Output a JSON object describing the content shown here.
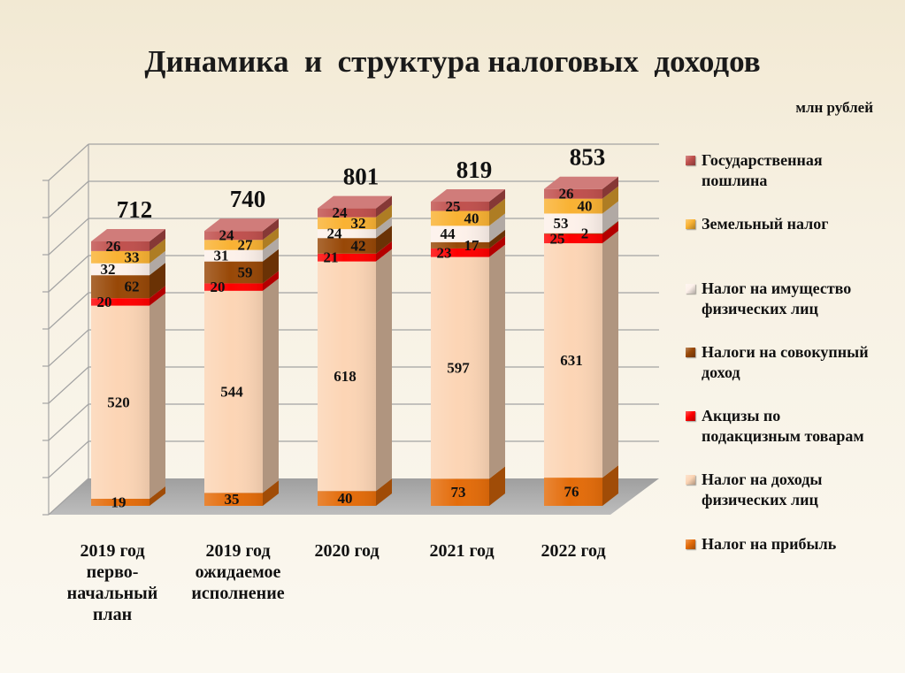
{
  "chart_data": {
    "type": "bar",
    "stacked": true,
    "style": "3d",
    "title": "Динамика  и  структура налоговых  доходов",
    "unit": "млн рублей",
    "categories": [
      "2019 год\nперво-\nначальный\nплан",
      "2019 год\nожидаемое\nисполнение",
      "2020 год",
      "2021 год",
      "2022 год"
    ],
    "series": [
      {
        "name": "Налог на прибыль",
        "values": [
          19,
          35,
          40,
          73,
          76
        ],
        "color": "#e46c0a"
      },
      {
        "name": "Налог на доходы физических лиц",
        "values": [
          520,
          544,
          618,
          597,
          631
        ],
        "color": "#fcd5b5"
      },
      {
        "name": "Акцизы по подакцизным товарам",
        "values": [
          20,
          20,
          21,
          23,
          25
        ],
        "color": "#ff0000"
      },
      {
        "name": "Налоги на совокупный доход",
        "values": [
          62,
          59,
          42,
          17,
          2
        ],
        "color": "#984807"
      },
      {
        "name": "Налог на имущество физических лиц",
        "values": [
          32,
          31,
          24,
          44,
          53
        ],
        "color": "#fdf1ea"
      },
      {
        "name": "Земельный налог",
        "values": [
          33,
          27,
          32,
          40,
          40
        ],
        "color": "#f9b233"
      },
      {
        "name": "Государственная пошлина",
        "values": [
          26,
          24,
          24,
          25,
          26
        ],
        "color": "#c0504d"
      }
    ],
    "totals": [
      712,
      740,
      801,
      819,
      853
    ],
    "ylim": [
      0,
      900
    ],
    "grid": true,
    "legend": "right"
  }
}
